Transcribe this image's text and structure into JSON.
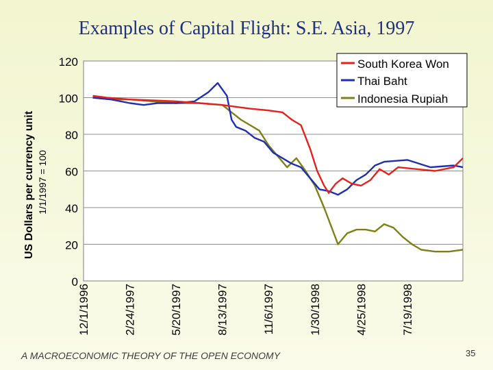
{
  "slide": {
    "title": "Examples of Capital Flight:  S.E. Asia, 1997",
    "footer": "A MACROECONOMIC THEORY OF THE OPEN ECONOMY",
    "page_number": "35"
  },
  "chart_data": {
    "type": "line",
    "title": "",
    "xlabel": "",
    "ylabel": "US Dollars per currency unit",
    "ylabel2": "1/1/1997 = 100",
    "ylim": [
      0,
      120
    ],
    "yticks": [
      0,
      20,
      40,
      60,
      80,
      100,
      120
    ],
    "xticks": [
      "12/1/1996",
      "2/24/1997",
      "5/20/1997",
      "8/13/1997",
      "11/6/1997",
      "1/30/1998",
      "4/25/1998",
      "7/19/1998"
    ],
    "xlim": [
      0,
      8.2
    ],
    "grid": "y",
    "legend": "top-right",
    "series": [
      {
        "name": "South Korea Won",
        "color": "#e8201c",
        "x": [
          0.2,
          0.5,
          1.0,
          1.5,
          2.0,
          2.5,
          3.0,
          3.3,
          3.6,
          4.0,
          4.3,
          4.5,
          4.7,
          4.9,
          5.05,
          5.2,
          5.3,
          5.45,
          5.6,
          5.8,
          6.0,
          6.2,
          6.4,
          6.6,
          6.8,
          7.2,
          7.6,
          8.0,
          8.2
        ],
        "values": [
          101,
          100,
          99,
          98.5,
          98,
          97,
          96,
          95,
          94,
          93,
          92,
          88,
          85,
          72,
          60,
          52,
          48,
          53,
          56,
          53,
          52,
          55,
          61,
          58,
          62,
          61,
          60,
          62,
          67
        ]
      },
      {
        "name": "Thai Baht",
        "color": "#1f2fb4",
        "x": [
          0.2,
          0.6,
          1.0,
          1.3,
          1.6,
          2.0,
          2.4,
          2.7,
          2.9,
          3.1,
          3.2,
          3.3,
          3.5,
          3.7,
          3.9,
          4.1,
          4.3,
          4.5,
          4.7,
          4.9,
          5.1,
          5.3,
          5.5,
          5.7,
          5.9,
          6.1,
          6.3,
          6.5,
          7.0,
          7.5,
          8.0,
          8.2
        ],
        "values": [
          100,
          99,
          97,
          96,
          97,
          97,
          98,
          103,
          108,
          101,
          88,
          84,
          82,
          78,
          76,
          70,
          67,
          64,
          62,
          56,
          50,
          49,
          47,
          50,
          55,
          58,
          63,
          65,
          66,
          62,
          63,
          62
        ]
      },
      {
        "name": "Indonesia Rupiah",
        "color": "#7f7f15",
        "x": [
          0.2,
          0.6,
          1.0,
          1.5,
          2.0,
          2.5,
          3.0,
          3.2,
          3.4,
          3.6,
          3.8,
          4.0,
          4.2,
          4.4,
          4.6,
          4.8,
          5.0,
          5.2,
          5.35,
          5.5,
          5.7,
          5.9,
          6.1,
          6.3,
          6.5,
          6.7,
          6.9,
          7.1,
          7.3,
          7.6,
          7.9,
          8.2
        ],
        "values": [
          100,
          99,
          99,
          98,
          97,
          97,
          96,
          92,
          88,
          85,
          82,
          74,
          68,
          62,
          67,
          60,
          52,
          40,
          30,
          20,
          26,
          28,
          28,
          27,
          31,
          29,
          24,
          20,
          17,
          16,
          16,
          17
        ]
      }
    ]
  }
}
